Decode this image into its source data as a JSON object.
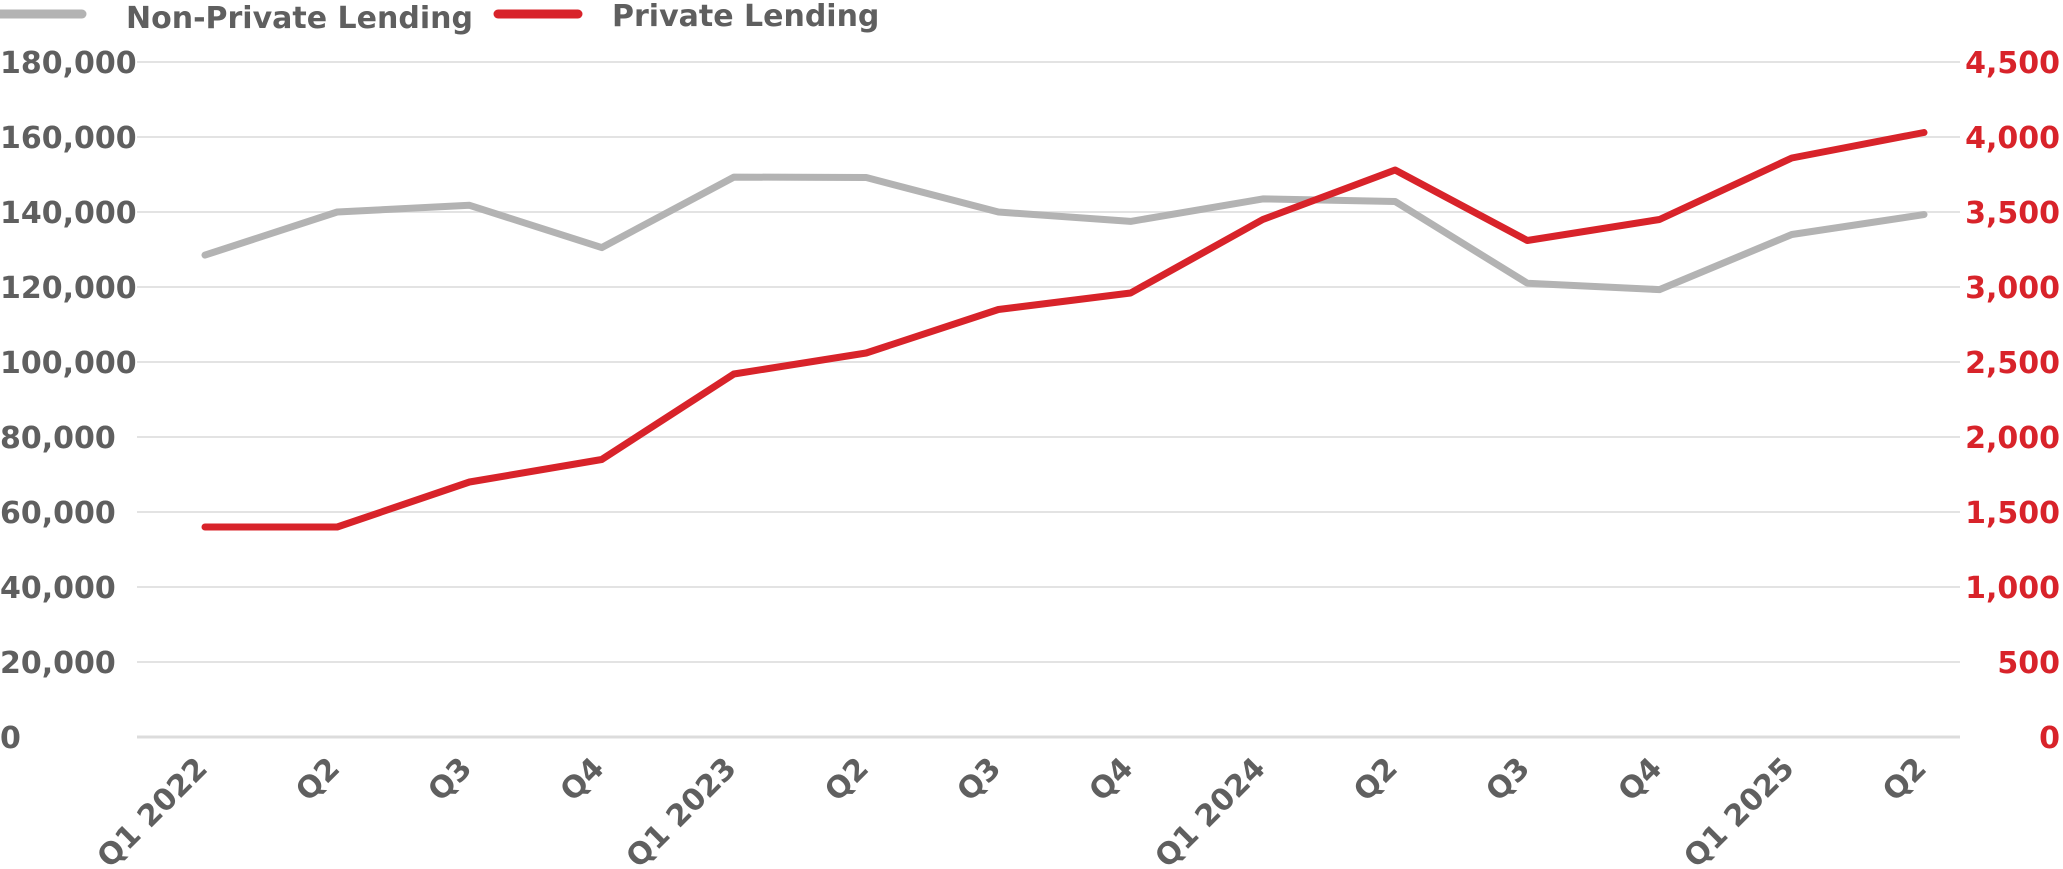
{
  "chart_data": {
    "type": "line",
    "categories": [
      "Q1 2022",
      "Q2",
      "Q3",
      "Q4",
      "Q1 2023",
      "Q2",
      "Q3",
      "Q4",
      "Q1 2024",
      "Q2",
      "Q3",
      "Q4",
      "Q1 2025",
      "Q2"
    ],
    "series": [
      {
        "name": "Non-Private Lending",
        "axis": "left",
        "color": "#b3b3b3",
        "values": [
          128500,
          140000,
          141800,
          130500,
          149300,
          149200,
          140000,
          137500,
          143500,
          142800,
          121000,
          119300,
          134000,
          139300
        ]
      },
      {
        "name": "Private Lending",
        "axis": "right",
        "color": "#d8232a",
        "values": [
          1400,
          1400,
          1700,
          1850,
          2420,
          2560,
          2850,
          2960,
          3450,
          3780,
          3310,
          3450,
          3860,
          4030
        ]
      }
    ],
    "y_left": {
      "ylim": [
        0,
        180000
      ],
      "ticks": [
        0,
        20000,
        40000,
        60000,
        80000,
        100000,
        120000,
        140000,
        160000,
        180000
      ],
      "tick_labels": [
        "0",
        "20,000",
        "40,000",
        "60,000",
        "80,000",
        "100,000",
        "120,000",
        "140,000",
        "160,000",
        "180,000"
      ],
      "label_color": "#5f5f5f"
    },
    "y_right": {
      "ylim": [
        0,
        4500
      ],
      "ticks": [
        0,
        500,
        1000,
        1500,
        2000,
        2500,
        3000,
        3500,
        4000,
        4500
      ],
      "tick_labels": [
        "0",
        "500",
        "1,000",
        "1,500",
        "2,000",
        "2,500",
        "3,000",
        "3,500",
        "4,000",
        "4,500"
      ],
      "label_color": "#d8232a"
    },
    "legend": {
      "position": "top-left",
      "items": [
        {
          "label": "Non-Private Lending",
          "color": "#b3b3b3"
        },
        {
          "label": "Private Lending",
          "color": "#d8232a"
        }
      ]
    },
    "grid": true,
    "grid_color": "#e3e3e3"
  }
}
